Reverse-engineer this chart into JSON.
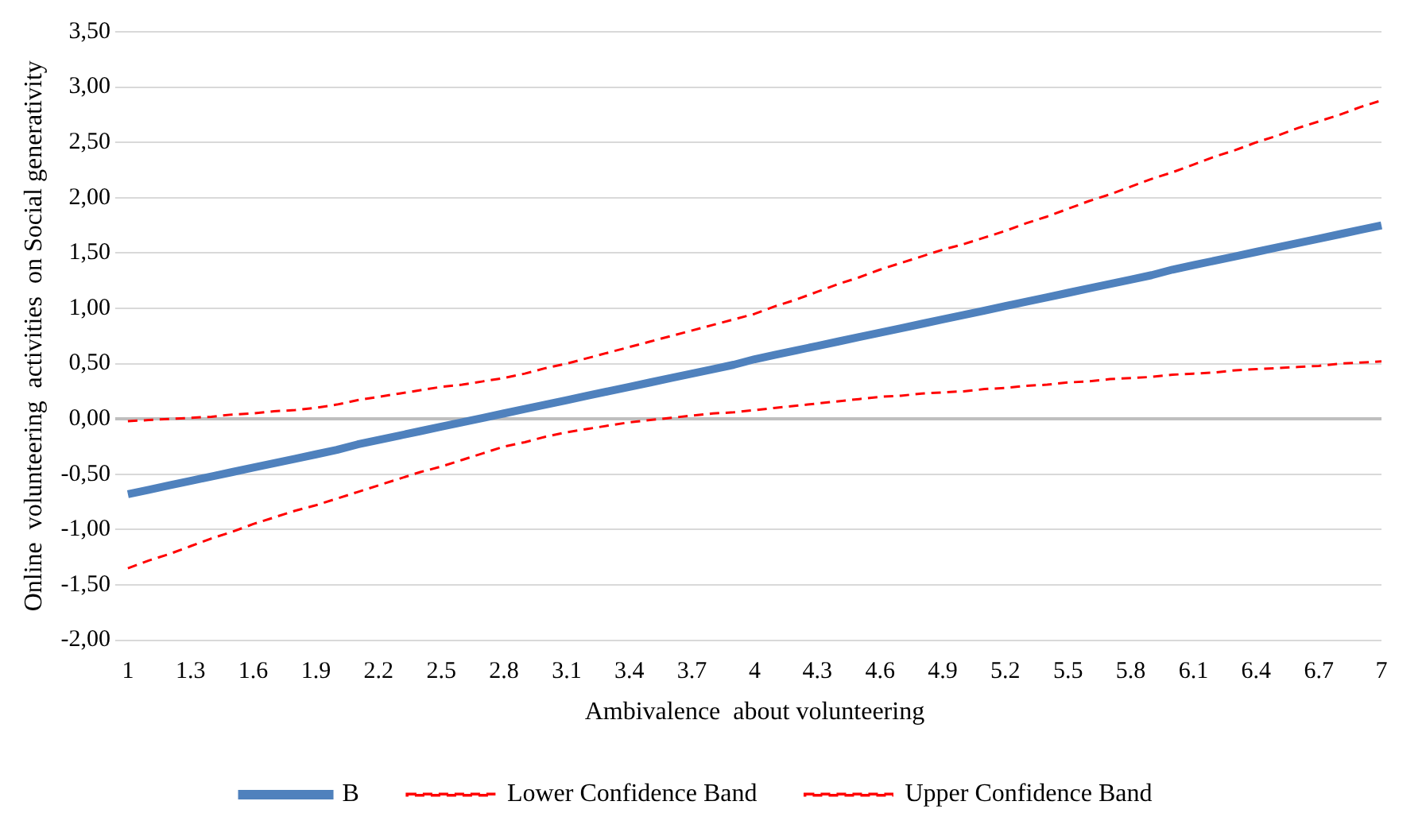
{
  "chart_data": {
    "type": "line",
    "xlabel": "Ambivalence  about volunteering",
    "ylabel": "Online  volunteering  activities  on Social generativity",
    "categories": [
      "1",
      null,
      null,
      "1.3",
      null,
      null,
      "1.6",
      null,
      null,
      "1.9",
      null,
      null,
      "2.2",
      null,
      null,
      "2.5",
      null,
      null,
      "2.8",
      null,
      null,
      "3.1",
      null,
      null,
      "3.4",
      null,
      null,
      "3.7",
      null,
      null,
      "4",
      null,
      null,
      "4.3",
      null,
      null,
      "4.6",
      null,
      null,
      "4.9",
      null,
      null,
      "5.2",
      null,
      null,
      "5.5",
      null,
      null,
      "5.8",
      null,
      null,
      "6.1",
      null,
      null,
      "6.4",
      null,
      null,
      "6.7",
      null,
      null,
      "7"
    ],
    "series": [
      {
        "name": "B",
        "color": "#4f81bd",
        "line_style": "solid",
        "values": [
          -0.68,
          -0.64,
          -0.6,
          -0.56,
          -0.52,
          -0.48,
          -0.44,
          -0.4,
          -0.36,
          -0.32,
          -0.28,
          -0.23,
          -0.19,
          -0.15,
          -0.11,
          -0.07,
          -0.03,
          0.01,
          0.05,
          0.09,
          0.13,
          0.17,
          0.21,
          0.25,
          0.29,
          0.33,
          0.37,
          0.41,
          0.45,
          0.49,
          0.54,
          0.58,
          0.62,
          0.66,
          0.7,
          0.74,
          0.78,
          0.82,
          0.86,
          0.9,
          0.94,
          0.98,
          1.02,
          1.06,
          1.1,
          1.14,
          1.18,
          1.22,
          1.26,
          1.3,
          1.35,
          1.39,
          1.43,
          1.47,
          1.51,
          1.55,
          1.59,
          1.63,
          1.67,
          1.71,
          1.75
        ]
      },
      {
        "name": "Lower Confidence Band",
        "color": "#ff0000",
        "line_style": "dashed",
        "values": [
          -1.35,
          -1.28,
          -1.22,
          -1.15,
          -1.08,
          -1.02,
          -0.95,
          -0.89,
          -0.83,
          -0.78,
          -0.72,
          -0.66,
          -0.6,
          -0.54,
          -0.48,
          -0.43,
          -0.37,
          -0.31,
          -0.25,
          -0.21,
          -0.16,
          -0.12,
          -0.09,
          -0.06,
          -0.03,
          -0.01,
          0.01,
          0.03,
          0.05,
          0.06,
          0.08,
          0.1,
          0.12,
          0.14,
          0.16,
          0.18,
          0.2,
          0.21,
          0.23,
          0.24,
          0.25,
          0.27,
          0.28,
          0.3,
          0.31,
          0.33,
          0.34,
          0.36,
          0.37,
          0.38,
          0.4,
          0.41,
          0.42,
          0.44,
          0.45,
          0.46,
          0.47,
          0.48,
          0.5,
          0.51,
          0.52
        ]
      },
      {
        "name": "Upper Confidence Band",
        "color": "#ff0000",
        "line_style": "dashed",
        "values": [
          -0.02,
          -0.01,
          0.0,
          0.01,
          0.02,
          0.04,
          0.05,
          0.07,
          0.08,
          0.1,
          0.13,
          0.17,
          0.2,
          0.23,
          0.26,
          0.29,
          0.31,
          0.34,
          0.37,
          0.41,
          0.46,
          0.5,
          0.55,
          0.6,
          0.65,
          0.7,
          0.75,
          0.8,
          0.85,
          0.9,
          0.95,
          1.02,
          1.08,
          1.15,
          1.22,
          1.28,
          1.35,
          1.41,
          1.47,
          1.53,
          1.58,
          1.64,
          1.7,
          1.77,
          1.83,
          1.9,
          1.97,
          2.03,
          2.1,
          2.17,
          2.23,
          2.3,
          2.37,
          2.43,
          2.5,
          2.56,
          2.63,
          2.69,
          2.75,
          2.82,
          2.88
        ]
      }
    ],
    "ylim": [
      -2,
      3.5
    ],
    "yticks": [
      {
        "value": -2,
        "label": "-2,00"
      },
      {
        "value": -1.5,
        "label": "-1,50"
      },
      {
        "value": -1,
        "label": "-1,00"
      },
      {
        "value": -0.5,
        "label": "-0,50"
      },
      {
        "value": 0,
        "label": "0,00"
      },
      {
        "value": 0.5,
        "label": "0,50"
      },
      {
        "value": 1,
        "label": "1,00"
      },
      {
        "value": 1.5,
        "label": "1,50"
      },
      {
        "value": 2,
        "label": "2,00"
      },
      {
        "value": 2.5,
        "label": "2,50"
      },
      {
        "value": 3,
        "label": "3,00"
      },
      {
        "value": 3.5,
        "label": "3,50"
      }
    ],
    "grid": "y",
    "legend": "bottom",
    "marker": "none"
  }
}
